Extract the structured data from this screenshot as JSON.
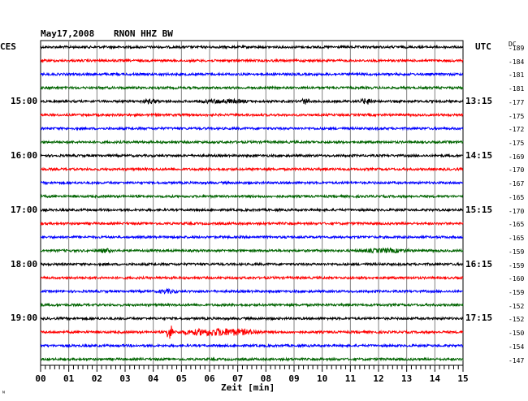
{
  "header": {
    "date": "May17,2008",
    "station": "RNON HHZ BW",
    "left_tz": "CES",
    "right_tz": "UTC",
    "dc_label": "DC"
  },
  "footer": {
    "xlabel": "Zeit [min]",
    "corner_mark": "ᴺ"
  },
  "chart_data": {
    "type": "line",
    "title": "May17,2008   RNON HHZ BW",
    "xlabel": "Zeit [min]",
    "ylabel": "",
    "xlim": [
      0,
      15
    ],
    "x_ticks": [
      "00",
      "01",
      "02",
      "03",
      "04",
      "05",
      "06",
      "07",
      "08",
      "09",
      "10",
      "11",
      "12",
      "13",
      "14",
      "15"
    ],
    "grid": true,
    "trace_minutes": 15,
    "trace_colors": [
      "#000000",
      "#ff0000",
      "#0000ff",
      "#006400"
    ],
    "hour_labels_left": [
      {
        "trace": 4,
        "text": "15:00"
      },
      {
        "trace": 8,
        "text": "16:00"
      },
      {
        "trace": 12,
        "text": "17:00"
      },
      {
        "trace": 16,
        "text": "18:00"
      },
      {
        "trace": 20,
        "text": "19:00"
      }
    ],
    "hour_labels_right": [
      {
        "trace": 4,
        "text": "13:15"
      },
      {
        "trace": 8,
        "text": "14:15"
      },
      {
        "trace": 12,
        "text": "15:15"
      },
      {
        "trace": 16,
        "text": "16:15"
      },
      {
        "trace": 20,
        "text": "17:15"
      }
    ],
    "dc_values": [
      -189,
      -184,
      -181,
      -181,
      -177,
      -175,
      -172,
      -175,
      -169,
      -170,
      -167,
      -165,
      -170,
      -165,
      -165,
      -159,
      -159,
      -160,
      -159,
      -152,
      -152,
      -150,
      -154,
      -147
    ],
    "events": [
      {
        "trace": 4,
        "start_min": 3.5,
        "end_min": 4.3,
        "amplitude": 3
      },
      {
        "trace": 4,
        "start_min": 5.4,
        "end_min": 7.6,
        "amplitude": 3
      },
      {
        "trace": 4,
        "start_min": 9.2,
        "end_min": 9.6,
        "amplitude": 4
      },
      {
        "trace": 4,
        "start_min": 11.3,
        "end_min": 11.9,
        "amplitude": 4
      },
      {
        "trace": 15,
        "start_min": 2.0,
        "end_min": 2.6,
        "amplitude": 3
      },
      {
        "trace": 15,
        "start_min": 11.2,
        "end_min": 13.3,
        "amplitude": 3
      },
      {
        "trace": 18,
        "start_min": 4.1,
        "end_min": 4.9,
        "amplitude": 3
      },
      {
        "trace": 21,
        "start_min": 4.5,
        "end_min": 4.7,
        "amplitude": 9
      },
      {
        "trace": 21,
        "start_min": 4.7,
        "end_min": 8.0,
        "amplitude": 5
      }
    ]
  }
}
